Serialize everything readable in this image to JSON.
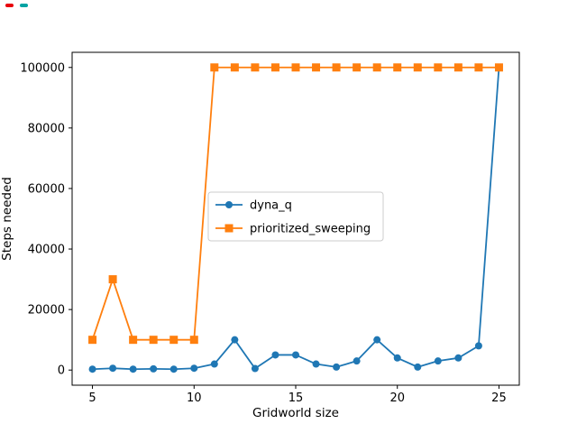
{
  "figure": {
    "background": "#ffffff",
    "plot_border_color": "#000000",
    "legend_border_color": "#cccccc"
  },
  "decorations": {
    "topleft_mark1_color": "#e8000b",
    "topleft_mark2_color": "#00a3a3"
  },
  "chart_data": {
    "type": "line",
    "title": "",
    "xlabel": "Gridworld size",
    "ylabel": "Steps needed",
    "x": [
      5,
      6,
      7,
      8,
      9,
      10,
      11,
      12,
      13,
      14,
      15,
      16,
      17,
      18,
      19,
      20,
      21,
      22,
      23,
      24,
      25
    ],
    "series": [
      {
        "name": "dyna_q",
        "color": "#1f77b4",
        "marker": "circle",
        "values": [
          300,
          600,
          300,
          400,
          300,
          600,
          2000,
          10000,
          500,
          5000,
          5000,
          2000,
          1000,
          3000,
          10000,
          4000,
          1000,
          3000,
          4000,
          8000,
          100000
        ]
      },
      {
        "name": "prioritized_sweeping",
        "color": "#ff7f0e",
        "marker": "square",
        "values": [
          10000,
          30000,
          10000,
          10000,
          10000,
          10000,
          100000,
          100000,
          100000,
          100000,
          100000,
          100000,
          100000,
          100000,
          100000,
          100000,
          100000,
          100000,
          100000,
          100000,
          100000
        ]
      }
    ],
    "xlim": [
      4,
      26
    ],
    "ylim": [
      -5000,
      105000
    ],
    "xticks": [
      5,
      10,
      15,
      20,
      25
    ],
    "yticks": [
      0,
      20000,
      40000,
      60000,
      80000,
      100000
    ],
    "grid": false,
    "legend": {
      "position": "center-left",
      "entries": [
        "dyna_q",
        "prioritized_sweeping"
      ]
    }
  }
}
